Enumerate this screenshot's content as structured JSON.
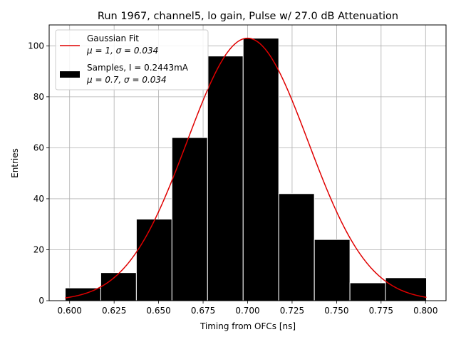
{
  "chart_data": {
    "type": "bar",
    "title": "Run 1967, channel5, lo gain, Pulse w/ 27.0 dB Attenuation",
    "xlabel": "Timing from OFCs [ns]",
    "ylabel": "Entries",
    "xlim": [
      0.5885,
      0.8115
    ],
    "ylim": [
      0,
      108.2
    ],
    "xticks": [
      0.6,
      0.625,
      0.65,
      0.675,
      0.7,
      0.725,
      0.75,
      0.775,
      0.8
    ],
    "xtick_labels": [
      "0.600",
      "0.625",
      "0.650",
      "0.675",
      "0.700",
      "0.725",
      "0.750",
      "0.775",
      "0.800"
    ],
    "yticks": [
      0,
      20,
      40,
      60,
      80,
      100
    ],
    "ytick_labels": [
      "0",
      "20",
      "40",
      "60",
      "80",
      "100"
    ],
    "grid": true,
    "legend_position": "top-left",
    "histogram": {
      "bin_edges": [
        0.5975,
        0.6175,
        0.6375,
        0.6575,
        0.6775,
        0.6975,
        0.7175,
        0.7375,
        0.7575,
        0.7775,
        0.8005
      ],
      "counts": [
        5,
        11,
        32,
        64,
        96,
        103,
        42,
        24,
        7,
        9
      ],
      "color": "#000000",
      "edgecolor": "#ffffff"
    },
    "gaussian_fit": {
      "mu": 0.7,
      "sigma": 0.034,
      "amplitude": 103,
      "x_range": [
        0.5975,
        0.8005
      ],
      "color": "#e00000"
    },
    "legend": [
      {
        "label_line1": "Gaussian Fit",
        "label_line2": "μ = 1, σ = 0.034",
        "kind": "line",
        "color": "#e00000"
      },
      {
        "label_line1": "Samples, I = 0.2443mA",
        "label_line2": "μ = 0.7, σ = 0.034",
        "kind": "patch",
        "color": "#000000"
      }
    ]
  }
}
